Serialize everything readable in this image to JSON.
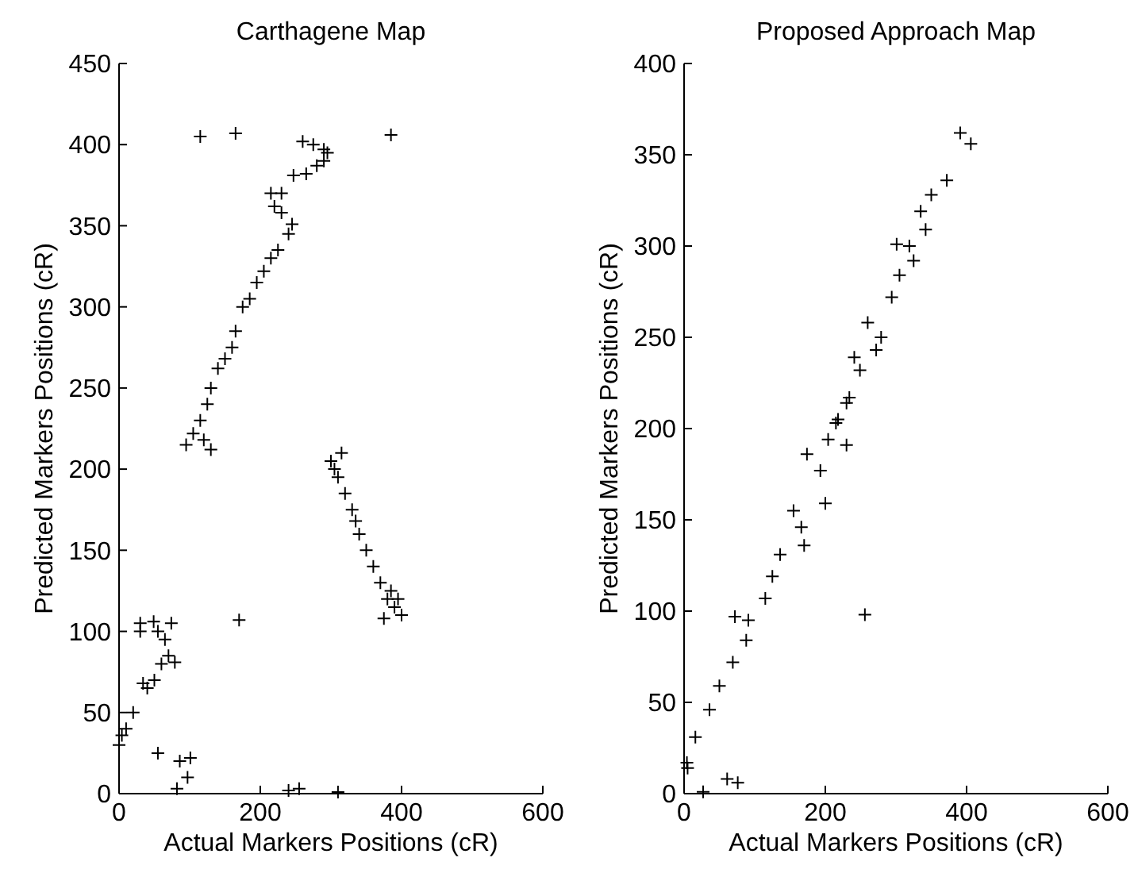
{
  "chart_data": [
    {
      "type": "scatter",
      "title": "Carthagene Map",
      "xlabel": "Actual Markers Positions (cR)",
      "ylabel": "Predicted Markers Positions (cR)",
      "xlim": [
        0,
        600
      ],
      "xticks": [
        0,
        200,
        400,
        600
      ],
      "ylim": [
        0,
        450
      ],
      "yticks": [
        0,
        50,
        100,
        150,
        200,
        250,
        300,
        350,
        400,
        450
      ],
      "marker": "cross",
      "grid": false,
      "series": [
        {
          "color": "#000000",
          "x": [
            115,
            165,
            385,
            170,
            55,
            240,
            255,
            310,
            95,
            105,
            115,
            125,
            130,
            140,
            150,
            160,
            165,
            175,
            185,
            195,
            205,
            215,
            225,
            240,
            245,
            230,
            220,
            215,
            230,
            247,
            265,
            280,
            290,
            295,
            290,
            275,
            260,
            120,
            130,
            300,
            305,
            310,
            320,
            330,
            335,
            340,
            350,
            360,
            370,
            380,
            390,
            400,
            395,
            385,
            315,
            375,
            0,
            4,
            10,
            20,
            34,
            40,
            50,
            60,
            70,
            79,
            74,
            65,
            55,
            49,
            30,
            30,
            86,
            97,
            101,
            82
          ],
          "values": [
            405,
            407,
            406,
            107,
            25,
            2,
            3,
            1,
            215,
            222,
            230,
            240,
            250,
            262,
            268,
            275,
            285,
            300,
            305,
            315,
            322,
            330,
            335,
            345,
            351,
            358,
            362,
            370,
            370,
            381,
            382,
            387,
            390,
            395,
            397,
            400,
            402,
            218,
            212,
            205,
            200,
            195,
            185,
            175,
            168,
            160,
            150,
            140,
            130,
            120,
            115,
            110,
            120,
            125,
            210,
            108,
            30,
            36,
            40,
            50,
            68,
            65,
            70,
            80,
            85,
            81,
            105,
            95,
            100,
            106,
            105,
            100,
            20,
            10,
            22,
            3
          ]
        }
      ]
    },
    {
      "type": "scatter",
      "title": "Proposed Approach Map",
      "xlabel": "Actual Markers Positions (cR)",
      "ylabel": "Predicted Markers Positions (cR)",
      "xlim": [
        0,
        600
      ],
      "xticks": [
        0,
        200,
        400,
        600
      ],
      "ylim": [
        0,
        400
      ],
      "yticks": [
        0,
        50,
        100,
        150,
        200,
        250,
        300,
        350,
        400
      ],
      "marker": "cross",
      "grid": false,
      "series": [
        {
          "color": "#000000",
          "x": [
            391,
            406,
            372,
            350,
            335,
            342,
            319,
            301,
            325,
            305,
            294,
            260,
            279,
            272,
            241,
            249,
            234,
            218,
            204,
            230,
            215,
            230,
            174,
            193,
            200,
            155,
            166,
            170,
            136,
            125,
            115,
            72,
            91,
            88,
            69,
            50,
            36,
            16,
            5,
            4,
            256,
            61,
            76,
            27
          ],
          "values": [
            362,
            356,
            336,
            328,
            319,
            309,
            300,
            301,
            292,
            284,
            272,
            258,
            250,
            243,
            239,
            232,
            217,
            205,
            194,
            214,
            203,
            191,
            186,
            177,
            159,
            155,
            146,
            136,
            131,
            119,
            107,
            97,
            95,
            84,
            72,
            59,
            46,
            31,
            14,
            17,
            98,
            8,
            6,
            1
          ]
        }
      ]
    }
  ]
}
